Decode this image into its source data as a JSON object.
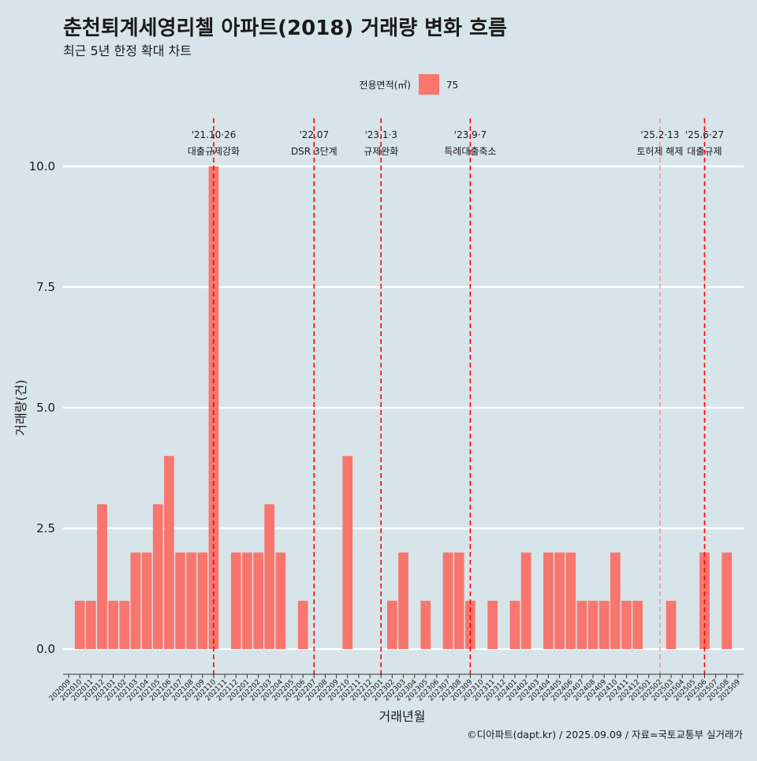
{
  "chart_data": {
    "type": "bar",
    "title": "춘천퇴계세영리첼 아파트(2018) 거래량 변화 흐름",
    "subtitle": "최근 5년 한정 확대 차트",
    "xlabel": "거래년월",
    "ylabel": "거래량(건)",
    "ylim": [
      0,
      10
    ],
    "yticks": [
      "0.0",
      "2.5",
      "5.0",
      "7.5",
      "10.0"
    ],
    "legend": {
      "title": "전용면적(㎡)",
      "entries": [
        "75"
      ],
      "position": "top"
    },
    "caption": "©디아파트(dapt.kr) / 2025.09.09 / 자료=국토교통부 실거래가",
    "grid": true,
    "categories": [
      "202009",
      "202010",
      "202011",
      "202012",
      "202101",
      "202102",
      "202103",
      "202104",
      "202105",
      "202106",
      "202107",
      "202108",
      "202109",
      "202110",
      "202111",
      "202112",
      "202201",
      "202202",
      "202203",
      "202204",
      "202205",
      "202206",
      "202207",
      "202208",
      "202209",
      "202210",
      "202211",
      "202212",
      "202301",
      "202302",
      "202303",
      "202304",
      "202305",
      "202306",
      "202307",
      "202308",
      "202309",
      "202310",
      "202311",
      "202312",
      "202401",
      "202402",
      "202403",
      "202404",
      "202405",
      "202406",
      "202407",
      "202408",
      "202409",
      "202410",
      "202411",
      "202412",
      "202501",
      "202502",
      "202503",
      "202504",
      "202505",
      "202506",
      "202507",
      "202508",
      "202509"
    ],
    "series": [
      {
        "name": "75",
        "color": "#f8766d",
        "values": [
          0,
          1,
          1,
          3,
          1,
          1,
          2,
          2,
          3,
          4,
          2,
          2,
          2,
          10,
          0,
          2,
          2,
          2,
          3,
          2,
          0,
          1,
          0,
          0,
          0,
          4,
          0,
          0,
          0,
          1,
          2,
          0,
          1,
          0,
          2,
          2,
          1,
          0,
          1,
          0,
          1,
          2,
          0,
          2,
          2,
          2,
          1,
          1,
          1,
          2,
          1,
          1,
          0,
          0,
          1,
          0,
          0,
          2,
          0,
          2,
          0
        ]
      }
    ],
    "annotations": [
      {
        "date": "'21.10·26",
        "label": "대출규제강화",
        "x": "202110",
        "style": "dashed",
        "color": "#ff0000"
      },
      {
        "date": "'22.07",
        "label": "DSR 3단계",
        "x": "202207",
        "style": "dashed",
        "color": "#ff0000"
      },
      {
        "date": "'23.1·3",
        "label": "규제완화",
        "x": "202301",
        "style": "dashed",
        "color": "#ff0000"
      },
      {
        "date": "'23.9·7",
        "label": "특례대출축소",
        "x": "202309",
        "style": "dashed",
        "color": "#ff0000"
      },
      {
        "date": "'25.2·13",
        "label": "토허제 해제",
        "x": "202502",
        "style": "dashed",
        "color": "#ff6666"
      },
      {
        "date": "'25.6·27",
        "label": "대출규제",
        "x": "202506",
        "style": "dashed",
        "color": "#ff0000"
      }
    ]
  }
}
